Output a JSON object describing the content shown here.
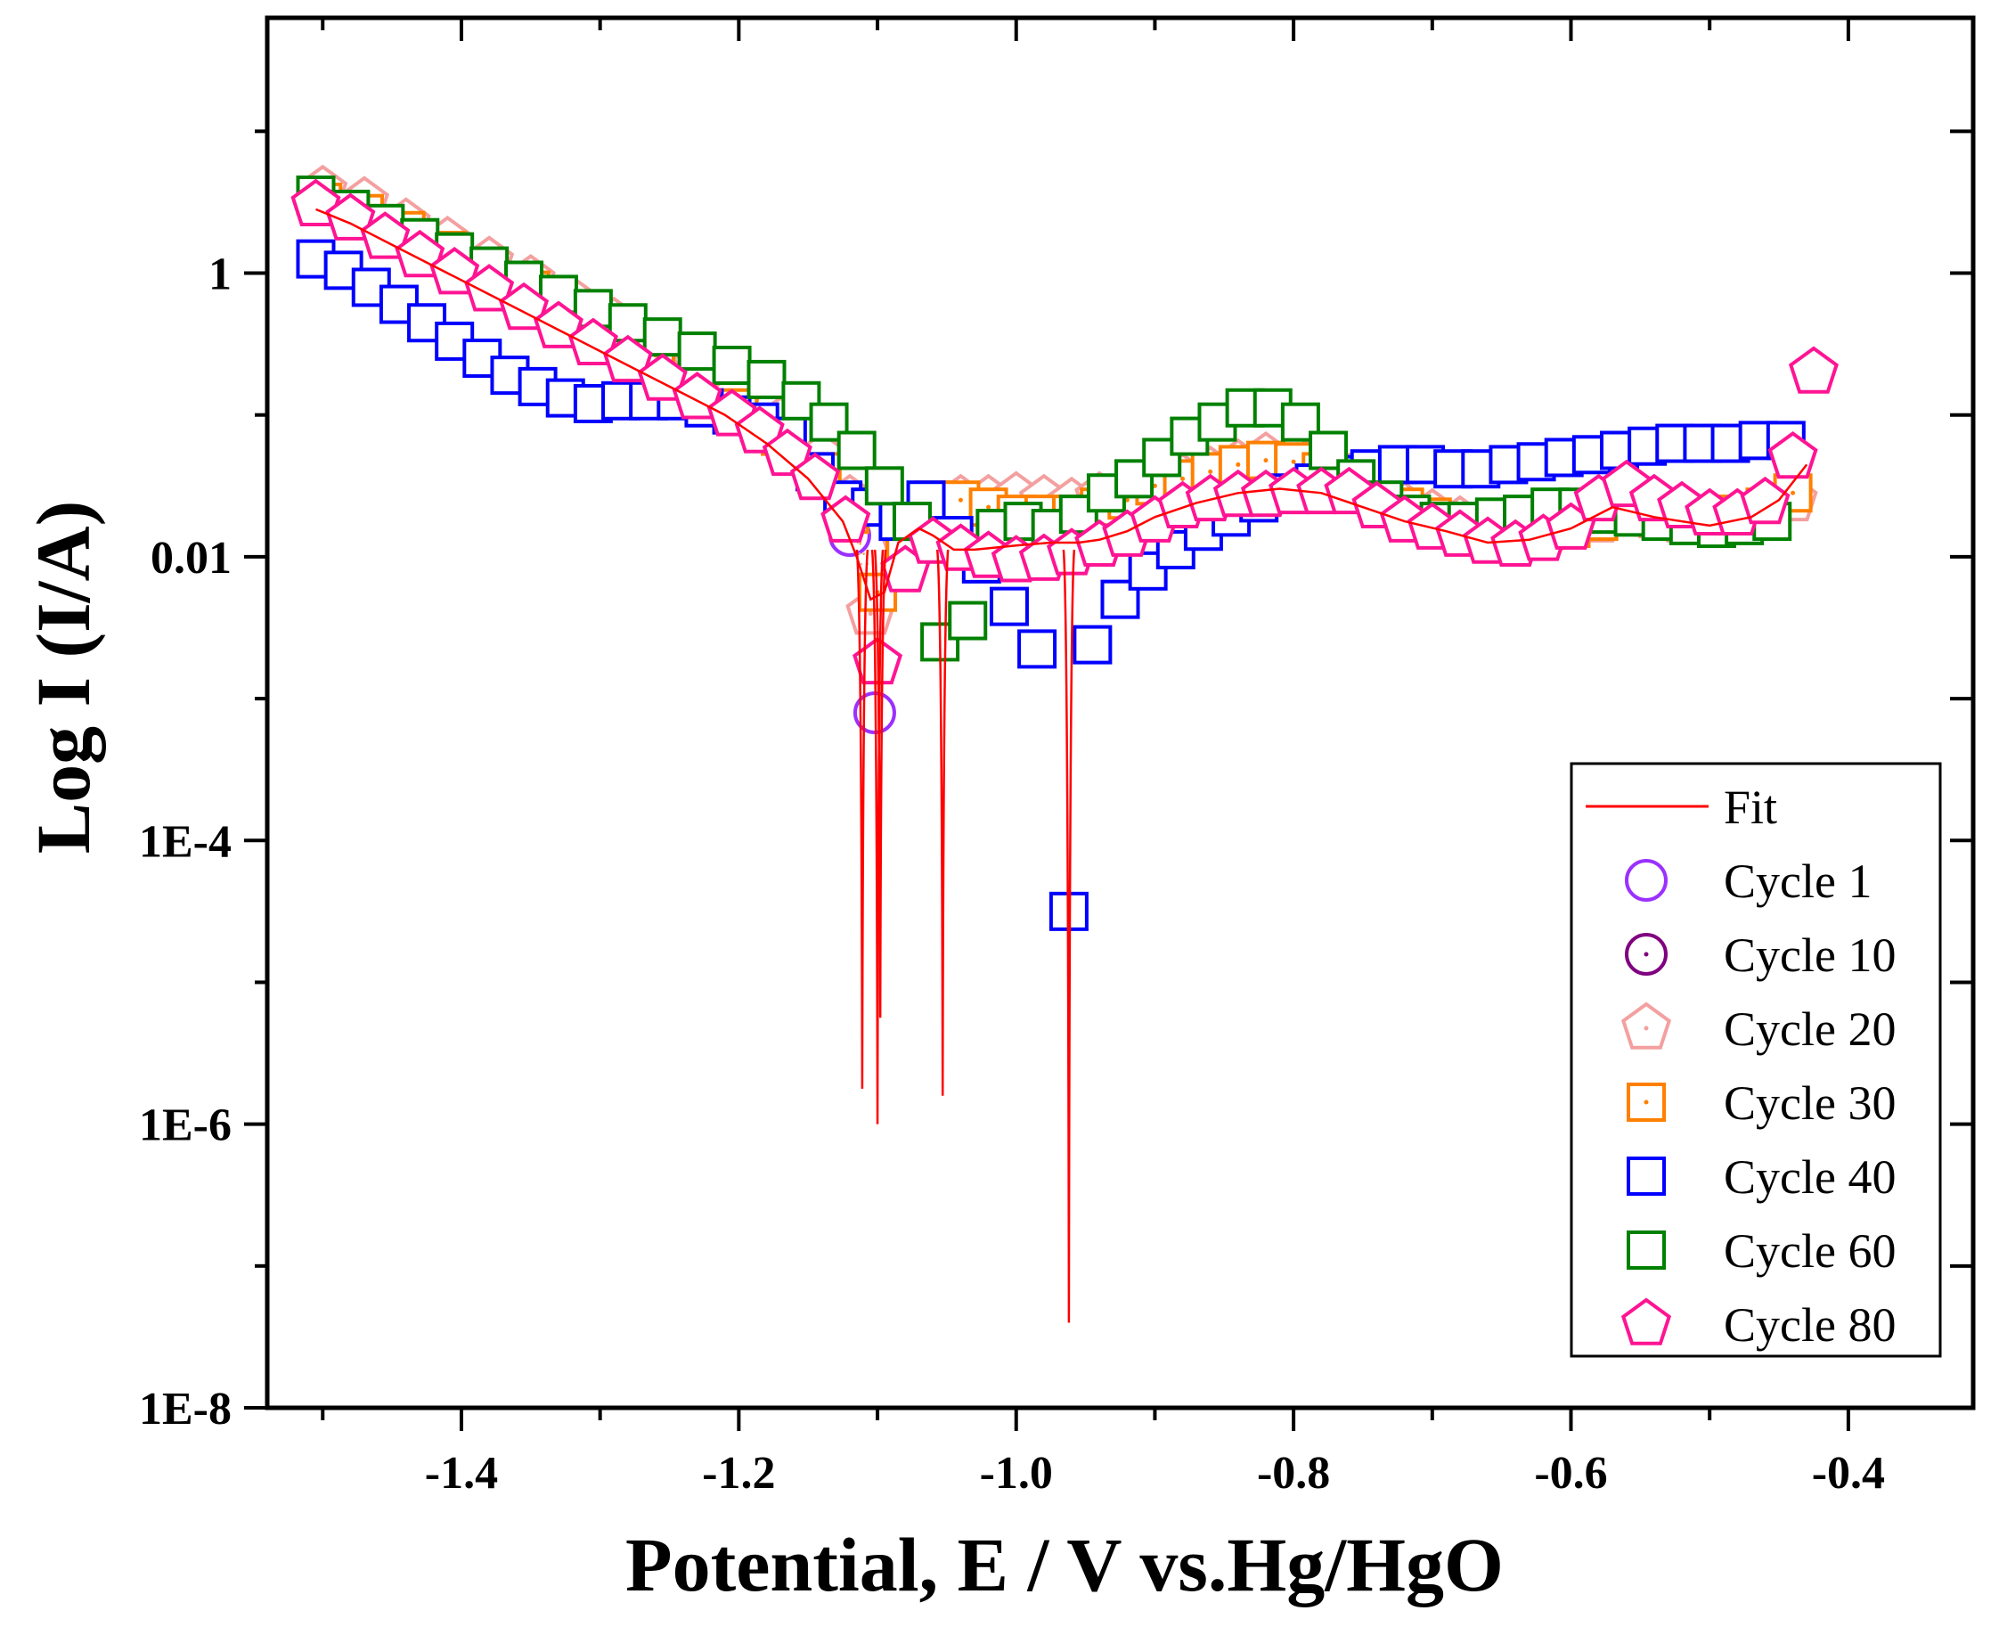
{
  "chart_data": {
    "type": "scatter",
    "title": "",
    "xlabel": "Potential, E / V vs.Hg/HgO",
    "ylabel": "Log I (I/A)",
    "x_scale": "linear",
    "y_scale": "log",
    "xlim": [
      -1.54,
      -0.31
    ],
    "ylim_log10": [
      -8,
      1.8
    ],
    "x_ticks": [
      -1.4,
      -1.2,
      -1.0,
      -0.8,
      -0.6,
      -0.4
    ],
    "x_tick_labels": [
      "-1.4",
      "-1.2",
      "-1.0",
      "-0.8",
      "-0.6",
      "-0.4"
    ],
    "y_ticks_log10": [
      -8,
      -6,
      -4,
      -2,
      0
    ],
    "y_tick_labels": [
      "1E-8",
      "1E-6",
      "1E-4",
      "0.01",
      "1"
    ],
    "y_minor_ticks_log10": [
      -7,
      -5,
      -3,
      -1,
      1
    ],
    "legend_position": "bottom-right",
    "fit": {
      "name": "Fit",
      "color": "#ff0000",
      "min_log10": -7.4,
      "dips": [
        {
          "x": -1.111,
          "log10": -5.75
        },
        {
          "x": -1.1,
          "log10": -6.0
        },
        {
          "x": -1.098,
          "log10": -5.25
        },
        {
          "x": -1.053,
          "log10": -5.8
        },
        {
          "x": -0.962,
          "log10": -7.4
        }
      ],
      "x": [
        -1.505,
        -1.48,
        -1.45,
        -1.42,
        -1.39,
        -1.36,
        -1.33,
        -1.3,
        -1.27,
        -1.24,
        -1.21,
        -1.18,
        -1.15,
        -1.125,
        -1.115,
        -1.105,
        -1.095,
        -1.085,
        -1.07,
        -1.06,
        -1.045,
        -1.03,
        -1.0,
        -0.975,
        -0.965,
        -0.955,
        -0.94,
        -0.92,
        -0.9,
        -0.87,
        -0.84,
        -0.81,
        -0.78,
        -0.75,
        -0.72,
        -0.69,
        -0.66,
        -0.63,
        -0.6,
        -0.57,
        -0.54,
        -0.5,
        -0.47,
        -0.45,
        -0.43
      ],
      "log10": [
        0.45,
        0.35,
        0.2,
        0.05,
        -0.1,
        -0.25,
        -0.4,
        -0.55,
        -0.7,
        -0.85,
        -1.0,
        -1.2,
        -1.45,
        -1.75,
        -2.0,
        -2.3,
        -2.25,
        -1.9,
        -1.8,
        -1.85,
        -1.95,
        -1.95,
        -1.92,
        -1.9,
        -1.9,
        -1.9,
        -1.88,
        -1.82,
        -1.72,
        -1.62,
        -1.55,
        -1.52,
        -1.55,
        -1.65,
        -1.75,
        -1.82,
        -1.9,
        -1.88,
        -1.8,
        -1.65,
        -1.72,
        -1.78,
        -1.72,
        -1.6,
        -1.35
      ]
    },
    "series": [
      {
        "name": "Cycle 1",
        "marker": "circle",
        "color": "#9b30ff",
        "x": [
          -1.12,
          -1.102
        ],
        "log10": [
          -1.85,
          -3.1
        ]
      },
      {
        "name": "Cycle 10",
        "marker": "circle-dot",
        "color": "#800080",
        "x": [],
        "log10": []
      },
      {
        "name": "Cycle 20",
        "marker": "pentagon-dot",
        "color": "#f4a0a0",
        "x": [
          -1.5,
          -1.47,
          -1.44,
          -1.41,
          -1.38,
          -1.35,
          -1.32,
          -1.29,
          -1.26,
          -1.23,
          -1.2,
          -1.17,
          -1.14,
          -1.12,
          -1.105,
          -1.08,
          -1.06,
          -1.04,
          -1.02,
          -1.0,
          -0.98,
          -0.96,
          -0.94,
          -0.92,
          -0.9,
          -0.88,
          -0.86,
          -0.84,
          -0.82,
          -0.8,
          -0.78,
          -0.76,
          -0.74,
          -0.72,
          -0.7,
          -0.68,
          -0.66,
          -0.64,
          -0.62,
          -0.6,
          -0.58,
          -0.56,
          -0.54,
          -0.52,
          -0.5,
          -0.48,
          -0.46,
          -0.44
        ],
        "log10": [
          0.58,
          0.5,
          0.35,
          0.22,
          0.08,
          -0.05,
          -0.2,
          -0.35,
          -0.5,
          -0.65,
          -0.85,
          -1.05,
          -1.3,
          -1.6,
          -2.4,
          -1.9,
          -1.7,
          -1.6,
          -1.6,
          -1.58,
          -1.6,
          -1.62,
          -1.58,
          -1.55,
          -1.5,
          -1.45,
          -1.4,
          -1.35,
          -1.3,
          -1.3,
          -1.35,
          -1.45,
          -1.55,
          -1.65,
          -1.7,
          -1.75,
          -1.8,
          -1.82,
          -1.8,
          -1.8,
          -1.75,
          -1.7,
          -1.72,
          -1.75,
          -1.75,
          -1.72,
          -1.7,
          -1.6
        ]
      },
      {
        "name": "Cycle 30",
        "marker": "square-dot",
        "color": "#ff8000",
        "x": [
          -1.5,
          -1.47,
          -1.44,
          -1.41,
          -1.38,
          -1.35,
          -1.32,
          -1.29,
          -1.26,
          -1.23,
          -1.2,
          -1.17,
          -1.14,
          -1.12,
          -1.1,
          -1.08,
          -1.06,
          -1.04,
          -1.02,
          -1.0,
          -0.98,
          -0.96,
          -0.94,
          -0.92,
          -0.9,
          -0.88,
          -0.86,
          -0.84,
          -0.82,
          -0.8,
          -0.78,
          -0.76,
          -0.74,
          -0.72,
          -0.7,
          -0.68,
          -0.66,
          -0.64,
          -0.62,
          -0.6,
          -0.58,
          -0.56,
          -0.54,
          -0.52,
          -0.5,
          -0.48,
          -0.46,
          -0.44
        ],
        "log10": [
          0.5,
          0.42,
          0.3,
          0.16,
          0.02,
          -0.12,
          -0.26,
          -0.42,
          -0.58,
          -0.74,
          -0.95,
          -1.15,
          -1.4,
          -1.7,
          -2.25,
          -1.95,
          -1.6,
          -1.6,
          -1.65,
          -1.7,
          -1.7,
          -1.7,
          -1.65,
          -1.6,
          -1.5,
          -1.45,
          -1.4,
          -1.35,
          -1.32,
          -1.33,
          -1.4,
          -1.5,
          -1.58,
          -1.65,
          -1.72,
          -1.78,
          -1.82,
          -1.85,
          -1.82,
          -1.8,
          -1.75,
          -1.7,
          -1.72,
          -1.75,
          -1.72,
          -1.7,
          -1.65,
          -1.55
        ]
      },
      {
        "name": "Cycle 40",
        "marker": "square",
        "color": "#0000ff",
        "x": [
          -1.505,
          -1.485,
          -1.465,
          -1.445,
          -1.425,
          -1.405,
          -1.385,
          -1.365,
          -1.345,
          -1.325,
          -1.305,
          -1.285,
          -1.265,
          -1.245,
          -1.225,
          -1.205,
          -1.185,
          -1.165,
          -1.145,
          -1.125,
          -1.105,
          -1.085,
          -1.065,
          -1.045,
          -1.025,
          -1.005,
          -0.985,
          -0.962,
          -0.945,
          -0.925,
          -0.905,
          -0.885,
          -0.865,
          -0.845,
          -0.825,
          -0.805,
          -0.785,
          -0.765,
          -0.745,
          -0.725,
          -0.705,
          -0.685,
          -0.665,
          -0.645,
          -0.625,
          -0.605,
          -0.585,
          -0.565,
          -0.545,
          -0.525,
          -0.505,
          -0.485,
          -0.465,
          -0.445
        ],
        "log10": [
          0.1,
          0.02,
          -0.1,
          -0.22,
          -0.35,
          -0.48,
          -0.6,
          -0.72,
          -0.8,
          -0.88,
          -0.92,
          -0.9,
          -0.9,
          -0.9,
          -0.95,
          -1.0,
          -1.05,
          -1.15,
          -1.4,
          -1.6,
          -1.65,
          -1.75,
          -1.6,
          -1.85,
          -2.05,
          -2.35,
          -2.65,
          -4.5,
          -2.62,
          -2.3,
          -2.1,
          -1.95,
          -1.82,
          -1.72,
          -1.62,
          -1.55,
          -1.48,
          -1.42,
          -1.38,
          -1.35,
          -1.35,
          -1.38,
          -1.38,
          -1.35,
          -1.33,
          -1.3,
          -1.28,
          -1.25,
          -1.22,
          -1.2,
          -1.2,
          -1.2,
          -1.18,
          -1.18
        ]
      },
      {
        "name": "Cycle 60",
        "marker": "square",
        "color": "#008000",
        "x": [
          -1.505,
          -1.48,
          -1.455,
          -1.43,
          -1.405,
          -1.38,
          -1.355,
          -1.33,
          -1.305,
          -1.28,
          -1.255,
          -1.23,
          -1.205,
          -1.18,
          -1.155,
          -1.135,
          -1.115,
          -1.095,
          -1.075,
          -1.055,
          -1.035,
          -1.015,
          -0.995,
          -0.975,
          -0.955,
          -0.935,
          -0.915,
          -0.895,
          -0.875,
          -0.855,
          -0.835,
          -0.815,
          -0.795,
          -0.775,
          -0.755,
          -0.735,
          -0.715,
          -0.695,
          -0.675,
          -0.655,
          -0.635,
          -0.615,
          -0.595,
          -0.575,
          -0.555,
          -0.535,
          -0.515,
          -0.495,
          -0.475,
          -0.455
        ],
        "log10": [
          0.55,
          0.45,
          0.35,
          0.25,
          0.15,
          0.05,
          -0.05,
          -0.15,
          -0.25,
          -0.35,
          -0.45,
          -0.55,
          -0.65,
          -0.75,
          -0.9,
          -1.05,
          -1.25,
          -1.5,
          -1.75,
          -2.6,
          -2.45,
          -1.8,
          -1.75,
          -1.8,
          -1.7,
          -1.55,
          -1.45,
          -1.3,
          -1.15,
          -1.05,
          -0.95,
          -0.95,
          -1.05,
          -1.25,
          -1.45,
          -1.6,
          -1.7,
          -1.75,
          -1.75,
          -1.72,
          -1.7,
          -1.65,
          -1.65,
          -1.7,
          -1.72,
          -1.75,
          -1.78,
          -1.8,
          -1.78,
          -1.75
        ]
      },
      {
        "name": "Cycle 80",
        "marker": "pentagon",
        "color": "#ff1493",
        "x": [
          -1.505,
          -1.48,
          -1.455,
          -1.43,
          -1.405,
          -1.38,
          -1.355,
          -1.33,
          -1.305,
          -1.28,
          -1.255,
          -1.23,
          -1.205,
          -1.185,
          -1.165,
          -1.145,
          -1.123,
          -1.1,
          -1.08,
          -1.06,
          -1.04,
          -1.02,
          -1.0,
          -0.98,
          -0.96,
          -0.94,
          -0.92,
          -0.9,
          -0.88,
          -0.86,
          -0.84,
          -0.82,
          -0.8,
          -0.78,
          -0.76,
          -0.74,
          -0.72,
          -0.7,
          -0.68,
          -0.66,
          -0.64,
          -0.62,
          -0.6,
          -0.58,
          -0.56,
          -0.54,
          -0.52,
          -0.5,
          -0.48,
          -0.46,
          -0.44,
          -0.425
        ],
        "log10": [
          0.48,
          0.38,
          0.25,
          0.12,
          0.0,
          -0.12,
          -0.25,
          -0.38,
          -0.5,
          -0.62,
          -0.75,
          -0.88,
          -1.0,
          -1.12,
          -1.28,
          -1.45,
          -1.75,
          -2.75,
          -2.1,
          -1.9,
          -1.95,
          -2.0,
          -2.03,
          -2.02,
          -1.98,
          -1.92,
          -1.85,
          -1.75,
          -1.65,
          -1.6,
          -1.57,
          -1.57,
          -1.55,
          -1.55,
          -1.55,
          -1.65,
          -1.75,
          -1.8,
          -1.85,
          -1.9,
          -1.92,
          -1.88,
          -1.8,
          -1.6,
          -1.5,
          -1.6,
          -1.65,
          -1.7,
          -1.7,
          -1.62,
          -1.3,
          -0.7
        ]
      }
    ]
  }
}
